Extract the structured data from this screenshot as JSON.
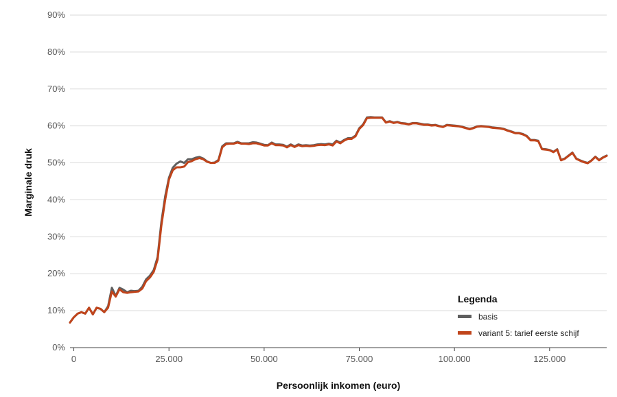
{
  "chart_data": {
    "type": "line",
    "title": "",
    "xlabel": "Persoonlijk inkomen (euro)",
    "ylabel": "Marginale druk",
    "xlim": [
      -1000,
      140000
    ],
    "ylim": [
      0,
      0.9
    ],
    "xticks": [
      0,
      25000,
      50000,
      75000,
      100000,
      125000
    ],
    "xtick_labels": [
      "0",
      "25.000",
      "50.000",
      "75.000",
      "100.000",
      "125.000"
    ],
    "yticks": [
      0,
      0.1,
      0.2,
      0.3,
      0.4,
      0.5,
      0.6,
      0.7,
      0.8,
      0.9
    ],
    "ytick_labels": [
      "0%",
      "10%",
      "20%",
      "30%",
      "40%",
      "50%",
      "60%",
      "70%",
      "80%",
      "90%"
    ],
    "grid": "horizontal",
    "legend": {
      "title": "Legenda",
      "placement": "bottom-right"
    },
    "series": [
      {
        "name": "basis",
        "color": "#5f5f5f",
        "x": [
          -1000,
          0,
          1000,
          2000,
          3000,
          4000,
          5000,
          6000,
          7000,
          8000,
          9000,
          10000,
          11000,
          12000,
          13000,
          14000,
          15000,
          16000,
          17000,
          18000,
          19000,
          20000,
          21000,
          22000,
          23000,
          24000,
          25000,
          26000,
          27000,
          28000,
          29000,
          30000,
          31000,
          32000,
          33000,
          34000,
          35000,
          36000,
          37000,
          38000,
          39000,
          40000,
          41000,
          42000,
          43000,
          44000,
          45000,
          46000,
          47000,
          48000,
          49000,
          50000,
          51000,
          52000,
          53000,
          54000,
          55000,
          56000,
          57000,
          58000,
          59000,
          60000,
          61000,
          62000,
          63000,
          64000,
          65000,
          66000,
          67000,
          68000,
          69000,
          70000,
          71000,
          72000,
          73000,
          74000,
          75000,
          76000,
          77000,
          78000,
          79000,
          80000,
          81000,
          82000,
          83000,
          84000,
          85000,
          86000,
          87000,
          88000,
          89000,
          90000,
          91000,
          92000,
          93000,
          94000,
          95000,
          96000,
          97000,
          98000,
          99000,
          100000,
          101000,
          102000,
          103000,
          104000,
          105000,
          106000,
          107000,
          108000,
          109000,
          110000,
          111000,
          112000,
          113000,
          114000,
          115000,
          116000,
          117000,
          118000,
          119000,
          120000,
          121000,
          122000,
          123000,
          124000,
          125000,
          126000,
          127000,
          128000,
          129000,
          130000,
          131000,
          132000,
          133000,
          134000,
          135000,
          136000,
          137000,
          138000,
          139000,
          140000
        ],
        "y": [
          0.068,
          0.082,
          0.092,
          0.096,
          0.092,
          0.108,
          0.09,
          0.108,
          0.105,
          0.096,
          0.112,
          0.162,
          0.14,
          0.162,
          0.157,
          0.15,
          0.154,
          0.153,
          0.154,
          0.165,
          0.185,
          0.195,
          0.21,
          0.245,
          0.34,
          0.41,
          0.46,
          0.487,
          0.498,
          0.504,
          0.5,
          0.51,
          0.51,
          0.514,
          0.516,
          0.512,
          0.504,
          0.5,
          0.501,
          0.508,
          0.545,
          0.553,
          0.553,
          0.553,
          0.557,
          0.553,
          0.553,
          0.553,
          0.556,
          0.555,
          0.552,
          0.549,
          0.548,
          0.555,
          0.55,
          0.55,
          0.549,
          0.544,
          0.55,
          0.545,
          0.55,
          0.547,
          0.548,
          0.547,
          0.548,
          0.55,
          0.551,
          0.55,
          0.552,
          0.55,
          0.56,
          0.555,
          0.562,
          0.567,
          0.567,
          0.574,
          0.594,
          0.604,
          0.623,
          0.624,
          0.623,
          0.623,
          0.623,
          0.61,
          0.613,
          0.609,
          0.611,
          0.608,
          0.607,
          0.605,
          0.608,
          0.608,
          0.606,
          0.604,
          0.604,
          0.602,
          0.603,
          0.6,
          0.598,
          0.603,
          0.602,
          0.601,
          0.6,
          0.598,
          0.595,
          0.592,
          0.595,
          0.599,
          0.6,
          0.599,
          0.598,
          0.596,
          0.595,
          0.594,
          0.592,
          0.588,
          0.585,
          0.581,
          0.581,
          0.578,
          0.573,
          0.562,
          0.562,
          0.56,
          0.538,
          0.537,
          0.535,
          0.53,
          0.537,
          0.508,
          0.512,
          0.52,
          0.528,
          0.512,
          0.507,
          0.503,
          0.5,
          0.507,
          0.517,
          0.508,
          0.515,
          0.52
        ]
      },
      {
        "name": "variant 5: tarief eerste schijf",
        "color": "#c0441b",
        "x": [
          -1000,
          0,
          1000,
          2000,
          3000,
          4000,
          5000,
          6000,
          7000,
          8000,
          9000,
          10000,
          11000,
          12000,
          13000,
          14000,
          15000,
          16000,
          17000,
          18000,
          19000,
          20000,
          21000,
          22000,
          23000,
          24000,
          25000,
          26000,
          27000,
          28000,
          29000,
          30000,
          31000,
          32000,
          33000,
          34000,
          35000,
          36000,
          37000,
          38000,
          39000,
          40000,
          41000,
          42000,
          43000,
          44000,
          45000,
          46000,
          47000,
          48000,
          49000,
          50000,
          51000,
          52000,
          53000,
          54000,
          55000,
          56000,
          57000,
          58000,
          59000,
          60000,
          61000,
          62000,
          63000,
          64000,
          65000,
          66000,
          67000,
          68000,
          69000,
          70000,
          71000,
          72000,
          73000,
          74000,
          75000,
          76000,
          77000,
          78000,
          79000,
          80000,
          81000,
          82000,
          83000,
          84000,
          85000,
          86000,
          87000,
          88000,
          89000,
          90000,
          91000,
          92000,
          93000,
          94000,
          95000,
          96000,
          97000,
          98000,
          99000,
          100000,
          101000,
          102000,
          103000,
          104000,
          105000,
          106000,
          107000,
          108000,
          109000,
          110000,
          111000,
          112000,
          113000,
          114000,
          115000,
          116000,
          117000,
          118000,
          119000,
          120000,
          121000,
          122000,
          123000,
          124000,
          125000,
          126000,
          127000,
          128000,
          129000,
          130000,
          131000,
          132000,
          133000,
          134000,
          135000,
          136000,
          137000,
          138000,
          139000,
          140000
        ],
        "y": [
          0.068,
          0.082,
          0.092,
          0.096,
          0.092,
          0.108,
          0.09,
          0.108,
          0.105,
          0.096,
          0.108,
          0.152,
          0.138,
          0.158,
          0.15,
          0.148,
          0.15,
          0.151,
          0.152,
          0.16,
          0.18,
          0.19,
          0.205,
          0.238,
          0.33,
          0.4,
          0.455,
          0.48,
          0.488,
          0.488,
          0.49,
          0.502,
          0.505,
          0.51,
          0.513,
          0.51,
          0.503,
          0.5,
          0.5,
          0.506,
          0.542,
          0.551,
          0.552,
          0.552,
          0.555,
          0.552,
          0.552,
          0.551,
          0.553,
          0.553,
          0.55,
          0.547,
          0.547,
          0.553,
          0.548,
          0.548,
          0.547,
          0.542,
          0.548,
          0.543,
          0.548,
          0.545,
          0.546,
          0.545,
          0.546,
          0.548,
          0.549,
          0.548,
          0.55,
          0.547,
          0.558,
          0.553,
          0.56,
          0.565,
          0.565,
          0.572,
          0.592,
          0.602,
          0.621,
          0.622,
          0.622,
          0.622,
          0.622,
          0.609,
          0.612,
          0.608,
          0.61,
          0.607,
          0.606,
          0.604,
          0.607,
          0.607,
          0.605,
          0.603,
          0.603,
          0.601,
          0.602,
          0.599,
          0.597,
          0.602,
          0.601,
          0.6,
          0.599,
          0.597,
          0.594,
          0.591,
          0.594,
          0.598,
          0.599,
          0.598,
          0.597,
          0.595,
          0.594,
          0.593,
          0.591,
          0.587,
          0.584,
          0.58,
          0.58,
          0.577,
          0.572,
          0.561,
          0.561,
          0.559,
          0.537,
          0.536,
          0.534,
          0.529,
          0.536,
          0.507,
          0.511,
          0.519,
          0.527,
          0.511,
          0.506,
          0.502,
          0.499,
          0.506,
          0.516,
          0.507,
          0.514,
          0.519
        ]
      }
    ]
  }
}
